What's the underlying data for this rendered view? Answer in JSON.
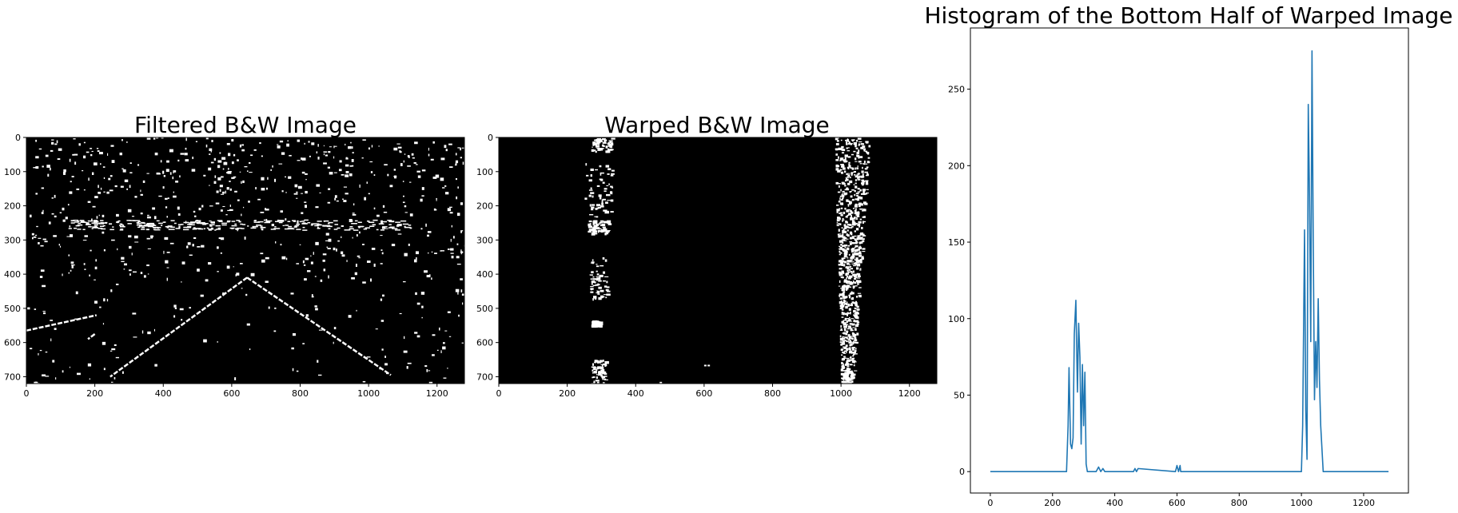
{
  "chart_data": [
    {
      "type": "image",
      "title": "Filtered B&W Image",
      "xlim": [
        0,
        1280
      ],
      "ylim": [
        720,
        0
      ],
      "xticks": [
        0,
        200,
        400,
        600,
        800,
        1000,
        1200
      ],
      "yticks": [
        0,
        100,
        200,
        300,
        400,
        500,
        600,
        700
      ],
      "colors": {
        "background": "#000000",
        "foreground": "#ffffff"
      }
    },
    {
      "type": "image",
      "title": "Warped B&W Image",
      "xlim": [
        0,
        1280
      ],
      "ylim": [
        720,
        0
      ],
      "xticks": [
        0,
        200,
        400,
        600,
        800,
        1000,
        1200
      ],
      "yticks": [
        0,
        100,
        200,
        300,
        400,
        500,
        600,
        700
      ],
      "colors": {
        "background": "#000000",
        "foreground": "#ffffff"
      }
    },
    {
      "type": "line",
      "title": "Histogram of the Bottom Half of Warped Image",
      "xlim": [
        -64,
        1344
      ],
      "ylim": [
        -14,
        290
      ],
      "xticks": [
        0,
        200,
        400,
        600,
        800,
        1000,
        1200
      ],
      "yticks": [
        0,
        50,
        100,
        150,
        200,
        250
      ],
      "grid": false,
      "series": [
        {
          "color": "#1f77b4",
          "x": [
            0,
            245,
            250,
            253,
            258,
            262,
            266,
            270,
            275,
            280,
            284,
            288,
            292,
            296,
            300,
            304,
            308,
            312,
            318,
            330,
            340,
            348,
            355,
            362,
            368,
            375,
            460,
            465,
            470,
            475,
            595,
            600,
            605,
            610,
            612,
            1000,
            1004,
            1010,
            1014,
            1018,
            1022,
            1026,
            1030,
            1034,
            1038,
            1042,
            1046,
            1050,
            1054,
            1058,
            1062,
            1070,
            1080,
            1280
          ],
          "y": [
            0,
            0,
            30,
            68,
            18,
            15,
            22,
            90,
            112,
            52,
            97,
            75,
            18,
            70,
            30,
            65,
            5,
            0,
            0,
            0,
            0,
            3,
            0,
            2,
            0,
            0,
            0,
            2,
            0,
            2,
            0,
            4,
            0,
            4,
            0,
            0,
            30,
            158,
            40,
            8,
            240,
            180,
            85,
            275,
            150,
            47,
            85,
            55,
            113,
            60,
            30,
            0,
            0,
            0
          ]
        }
      ]
    }
  ]
}
